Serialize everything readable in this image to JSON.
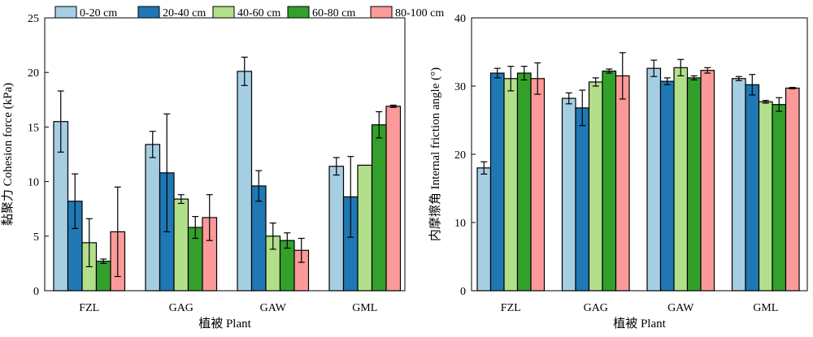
{
  "legend": [
    {
      "label": "0-20 cm",
      "color": "#a6cee3"
    },
    {
      "label": "20-40 cm",
      "color": "#1f78b4"
    },
    {
      "label": "40-60 cm",
      "color": "#b2df8a"
    },
    {
      "label": "60-80 cm",
      "color": "#33a02c"
    },
    {
      "label": "80-100 cm",
      "color": "#fb9a99"
    }
  ],
  "chart_data": [
    {
      "type": "bar",
      "categories": [
        "FZL",
        "GAG",
        "GAW",
        "GML"
      ],
      "xlabel": "植被 Plant",
      "ylabel": "黏聚力 Cohesion force (kPa)",
      "ylim": [
        0,
        25
      ],
      "yticks": [
        0,
        5,
        10,
        15,
        20,
        25
      ],
      "legend_position": "top",
      "series": [
        {
          "name": "0-20 cm",
          "color": "#a6cee3",
          "values": [
            15.5,
            13.4,
            20.1,
            11.4
          ],
          "errors": [
            2.8,
            1.2,
            1.3,
            0.8
          ]
        },
        {
          "name": "20-40 cm",
          "color": "#1f78b4",
          "values": [
            8.2,
            10.8,
            9.6,
            8.6
          ],
          "errors": [
            2.5,
            5.4,
            1.4,
            3.7
          ]
        },
        {
          "name": "40-60 cm",
          "color": "#b2df8a",
          "values": [
            4.4,
            8.4,
            5.0,
            11.5
          ],
          "errors": [
            2.2,
            0.4,
            1.2,
            0
          ]
        },
        {
          "name": "60-80 cm",
          "color": "#33a02c",
          "values": [
            2.7,
            5.8,
            4.6,
            15.2
          ],
          "errors": [
            0.2,
            1.0,
            0.7,
            1.2
          ]
        },
        {
          "name": "80-100 cm",
          "color": "#fb9a99",
          "values": [
            5.4,
            6.7,
            3.7,
            16.9
          ],
          "errors": [
            4.1,
            2.1,
            1.1,
            0.1
          ]
        }
      ]
    },
    {
      "type": "bar",
      "categories": [
        "FZL",
        "GAG",
        "GAW",
        "GML"
      ],
      "xlabel": "植被 Plant",
      "ylabel": "内摩擦角 Internal friction angle (°)",
      "ylim": [
        0,
        40
      ],
      "yticks": [
        0,
        10,
        20,
        30,
        40
      ],
      "series": [
        {
          "name": "0-20 cm",
          "color": "#a6cee3",
          "values": [
            18.0,
            28.2,
            32.6,
            31.1
          ],
          "errors": [
            0.9,
            0.8,
            1.2,
            0.3
          ]
        },
        {
          "name": "20-40 cm",
          "color": "#1f78b4",
          "values": [
            31.9,
            26.8,
            30.7,
            30.2
          ],
          "errors": [
            0.7,
            2.6,
            0.5,
            1.5
          ]
        },
        {
          "name": "40-60 cm",
          "color": "#b2df8a",
          "values": [
            31.1,
            30.6,
            32.7,
            27.7
          ],
          "errors": [
            1.8,
            0.6,
            1.2,
            0.2
          ]
        },
        {
          "name": "60-80 cm",
          "color": "#33a02c",
          "values": [
            31.9,
            32.2,
            31.2,
            27.3
          ],
          "errors": [
            1.0,
            0.3,
            0.3,
            1.0
          ]
        },
        {
          "name": "80-100 cm",
          "color": "#fb9a99",
          "values": [
            31.1,
            31.5,
            32.3,
            29.7
          ],
          "errors": [
            2.3,
            3.4,
            0.4,
            0.1
          ]
        }
      ]
    }
  ]
}
